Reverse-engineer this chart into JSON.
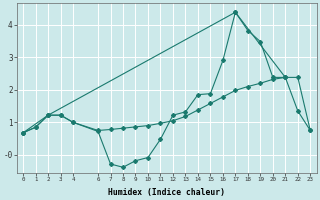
{
  "xlabel": "Humidex (Indice chaleur)",
  "background_color": "#cce9ea",
  "grid_color": "#ffffff",
  "line_color": "#1a7a6e",
  "xlim": [
    -0.5,
    23.5
  ],
  "ylim": [
    -0.55,
    4.65
  ],
  "yticks": [
    0,
    1,
    2,
    3,
    4
  ],
  "ytick_labels": [
    "-0",
    "1",
    "2",
    "3",
    "4"
  ],
  "xticks": [
    0,
    1,
    2,
    3,
    4,
    6,
    7,
    8,
    9,
    10,
    11,
    12,
    13,
    14,
    15,
    16,
    17,
    18,
    19,
    20,
    21,
    22,
    23
  ],
  "series1_x": [
    0,
    1,
    2,
    3,
    4,
    6,
    7,
    8,
    9,
    10,
    11,
    12,
    13,
    14,
    15,
    16,
    17,
    18,
    19,
    20,
    21,
    22,
    23
  ],
  "series1_y": [
    0.68,
    0.85,
    1.22,
    1.22,
    1.0,
    0.72,
    -0.28,
    -0.38,
    -0.18,
    -0.08,
    0.48,
    1.22,
    1.32,
    1.85,
    1.88,
    2.9,
    4.38,
    3.82,
    3.48,
    2.38,
    2.38,
    1.35,
    0.75
  ],
  "series2_x": [
    0,
    2,
    17,
    21
  ],
  "series2_y": [
    0.68,
    1.22,
    4.38,
    2.38
  ],
  "series3_x": [
    0,
    1,
    2,
    3,
    4,
    6,
    7,
    8,
    9,
    10,
    11,
    12,
    13,
    14,
    15,
    16,
    17,
    18,
    19,
    20,
    21,
    22,
    23
  ],
  "series3_y": [
    0.68,
    0.85,
    1.22,
    1.22,
    1.0,
    0.75,
    0.78,
    0.82,
    0.86,
    0.9,
    0.97,
    1.05,
    1.18,
    1.38,
    1.58,
    1.78,
    1.98,
    2.1,
    2.2,
    2.32,
    2.38,
    2.38,
    0.75
  ]
}
